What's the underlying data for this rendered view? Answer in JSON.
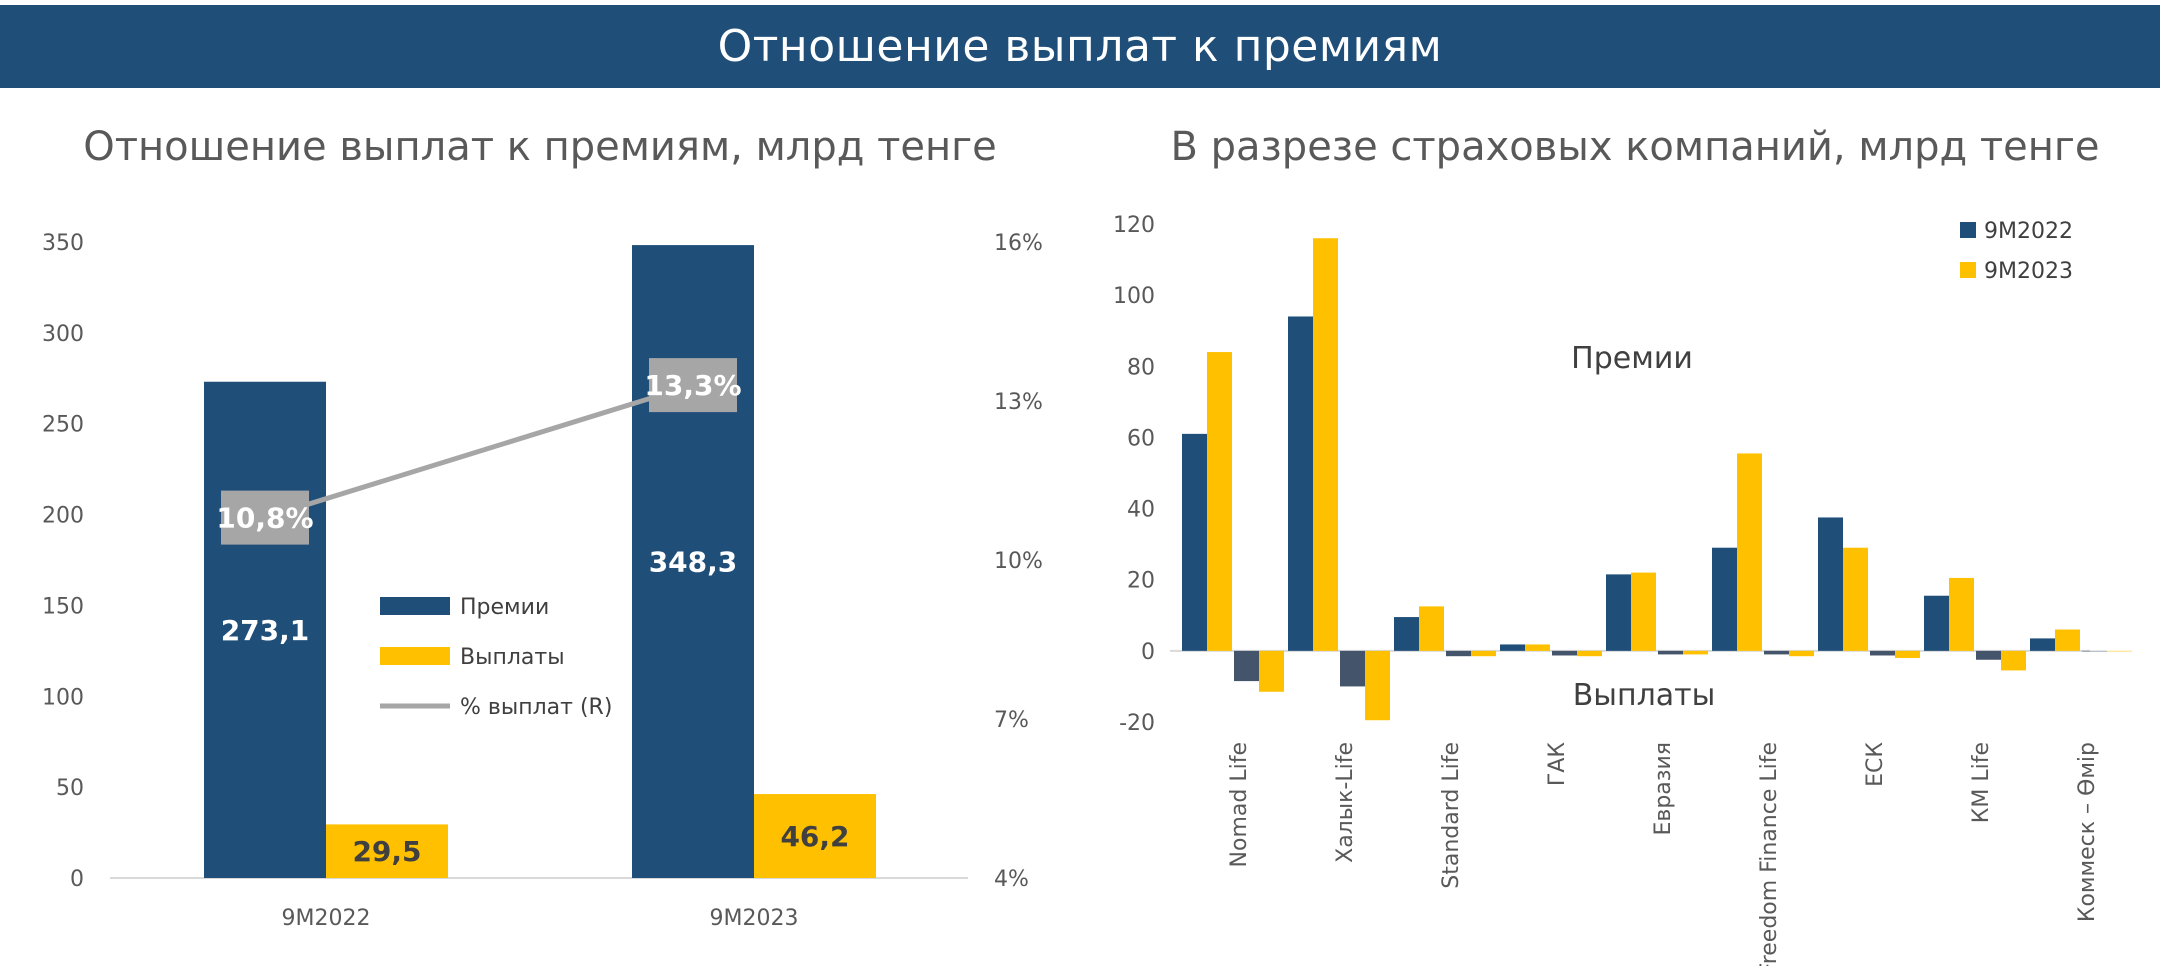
{
  "page": {
    "banner_title": "Отношение выплат к премиям"
  },
  "colors": {
    "banner": "#1f4e79",
    "premiums": "#1f4e79",
    "payouts": "#ffc000",
    "payouts_2022_negative": "#44546a",
    "ratio_line": "#a6a6a6",
    "axis": "#d9d9d9"
  },
  "chart_data": [
    {
      "type": "bar",
      "title": "Отношение выплат к премиям, млрд тенге",
      "categories": [
        "9М2022",
        "9М2023"
      ],
      "series": [
        {
          "name": "Премии",
          "values": [
            273.1,
            348.3
          ],
          "labels": [
            "273,1",
            "348,3"
          ]
        },
        {
          "name": "Выплаты",
          "values": [
            29.5,
            46.2
          ],
          "labels": [
            "29,5",
            "46,2"
          ]
        },
        {
          "name": "%  выплат (R)",
          "type": "line",
          "axis": "right",
          "values": [
            10.8,
            13.3
          ],
          "labels": [
            "10,8%",
            "13,3%"
          ]
        }
      ],
      "ylim": [
        0,
        350
      ],
      "yticks": [
        "0",
        "50",
        "100",
        "150",
        "200",
        "250",
        "300",
        "350"
      ],
      "y2lim": [
        4,
        16
      ],
      "y2ticks": [
        "4%",
        "7%",
        "10%",
        "13%",
        "16%"
      ],
      "legend": "center"
    },
    {
      "type": "bar",
      "title": "В разрезе страховых компаний, млрд тенге",
      "categories": [
        "Nomad Life",
        "Халык-Life",
        "Standard Life",
        "ГАК",
        "Евразия",
        "Freedom Finance Life",
        "ЕСК",
        "КМ Life",
        "Коммеск – Өмір"
      ],
      "series": [
        {
          "name": "9М2022",
          "premiums": [
            61,
            94,
            9.5,
            1.8,
            21.5,
            29,
            37.5,
            15.5,
            3.5
          ],
          "payouts": [
            -8.5,
            -10,
            -1.5,
            -1.3,
            -1,
            -1,
            -1.3,
            -2.5,
            0
          ]
        },
        {
          "name": "9М2023",
          "premiums": [
            84,
            116,
            12.5,
            1.8,
            22,
            55.5,
            29,
            20.5,
            6
          ],
          "payouts": [
            -11.5,
            -19.5,
            -1.5,
            -1.5,
            -1,
            -1.5,
            -2,
            -5.5,
            0
          ]
        }
      ],
      "ylim": [
        -20,
        120
      ],
      "yticks": [
        "-20",
        "0",
        "20",
        "40",
        "60",
        "80",
        "100",
        "120"
      ],
      "annotations": [
        "Премии",
        "Выплаты"
      ],
      "legend": "top-right"
    }
  ]
}
